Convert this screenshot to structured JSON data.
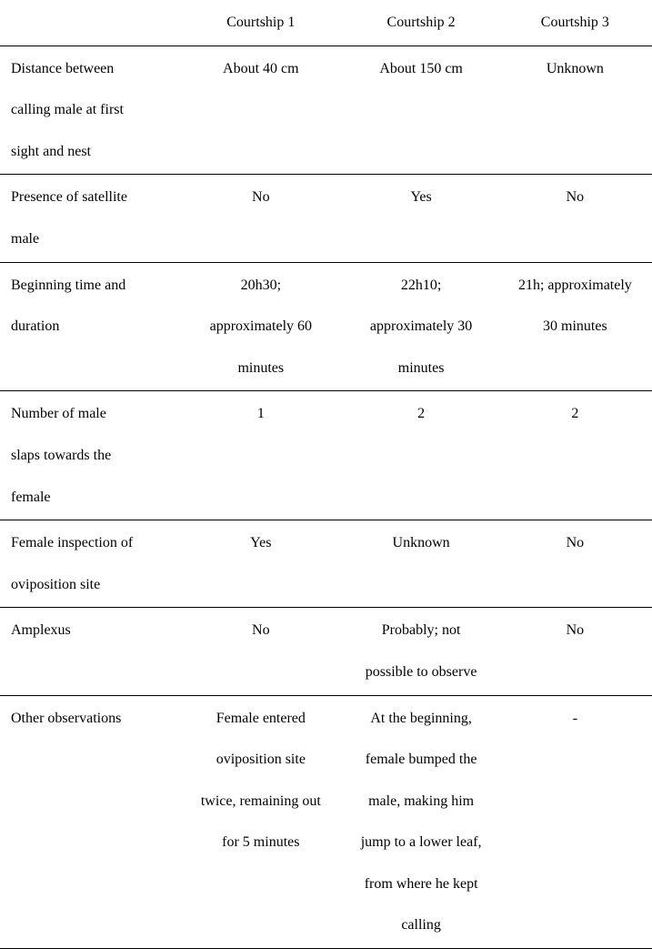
{
  "table": {
    "font_family": "Times New Roman",
    "font_size_pt": 12,
    "text_color": "#000000",
    "background_color": "#ffffff",
    "border_color": "#000000",
    "line_height": 2.85,
    "columns": [
      {
        "header": "",
        "align": "left",
        "width_pct": 26
      },
      {
        "header": "Courtship 1",
        "align": "center",
        "width_pct": 26
      },
      {
        "header": "Courtship 2",
        "align": "center",
        "width_pct": 24
      },
      {
        "header": "Courtship 3",
        "align": "center",
        "width_pct": 24
      }
    ],
    "rows": [
      {
        "label": [
          "Distance between",
          "calling male at first",
          "sight and nest"
        ],
        "c1": [
          "About 40 cm"
        ],
        "c2": [
          "About 150 cm"
        ],
        "c3": [
          "Unknown"
        ]
      },
      {
        "label": [
          "Presence of satellite",
          "male"
        ],
        "c1": [
          "No"
        ],
        "c2": [
          "Yes"
        ],
        "c3": [
          "No"
        ]
      },
      {
        "label": [
          "Beginning time and",
          "duration"
        ],
        "c1": [
          "20h30;",
          "approximately 60",
          "minutes"
        ],
        "c2": [
          "22h10;",
          "approximately 30",
          "minutes"
        ],
        "c3": [
          "21h; approximately",
          "30 minutes"
        ]
      },
      {
        "label": [
          "Number of male",
          "slaps towards the",
          "female"
        ],
        "c1": [
          "1"
        ],
        "c2": [
          "2"
        ],
        "c3": [
          "2"
        ]
      },
      {
        "label": [
          "Female inspection of",
          "oviposition site"
        ],
        "c1": [
          "Yes"
        ],
        "c2": [
          "Unknown"
        ],
        "c3": [
          "No"
        ]
      },
      {
        "label": [
          "Amplexus"
        ],
        "c1": [
          "No"
        ],
        "c2": [
          "Probably; not",
          "possible to observe"
        ],
        "c3": [
          "No"
        ]
      },
      {
        "label": [
          "Other observations"
        ],
        "c1": [
          "Female entered",
          "oviposition site",
          "twice, remaining out",
          "for 5 minutes"
        ],
        "c2": [
          "At the beginning,",
          "female bumped the",
          "male, making him",
          "jump to a lower leaf,",
          "from where he kept",
          "calling"
        ],
        "c3": [
          "-"
        ]
      }
    ]
  }
}
